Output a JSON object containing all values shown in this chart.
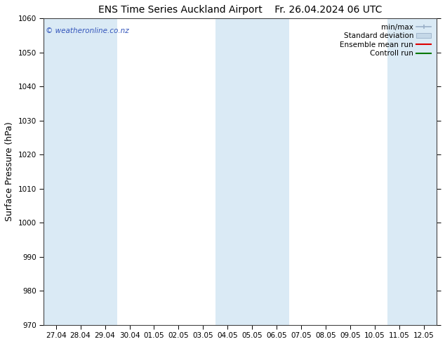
{
  "title": "ENS Time Series Auckland Airport",
  "title2": "Fr. 26.04.2024 06 UTC",
  "ylabel": "Surface Pressure (hPa)",
  "ylim": [
    970,
    1060
  ],
  "yticks": [
    970,
    980,
    990,
    1000,
    1010,
    1020,
    1030,
    1040,
    1050,
    1060
  ],
  "x_labels": [
    "27.04",
    "28.04",
    "29.04",
    "30.04",
    "01.05",
    "02.05",
    "03.05",
    "04.05",
    "05.05",
    "06.05",
    "07.05",
    "08.05",
    "09.05",
    "10.05",
    "11.05",
    "12.05"
  ],
  "n_cols": 16,
  "shaded_cols": [
    0,
    1,
    2,
    7,
    8,
    9,
    14,
    15
  ],
  "shade_color": "#daeaf5",
  "bg_color": "#ffffff",
  "watermark": "© weatheronline.co.nz",
  "watermark_color": "#3355bb",
  "title_fontsize": 10,
  "tick_fontsize": 7.5,
  "ylabel_fontsize": 9,
  "legend_fontsize": 7.5,
  "spine_color": "#444444",
  "minmax_color": "#9ab0c8",
  "stddev_color": "#c5d8e8",
  "mean_color": "#dd0000",
  "control_color": "#007700"
}
